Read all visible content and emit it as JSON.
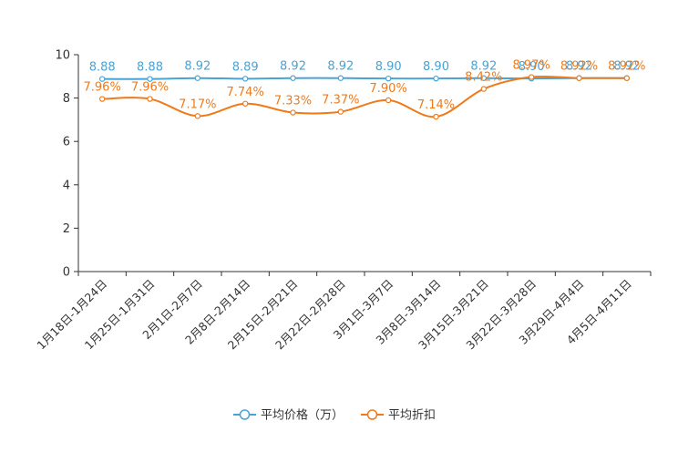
{
  "chart_data": {
    "type": "line",
    "title": "",
    "xlabel": "",
    "ylabel": "",
    "ylim": [
      0,
      10
    ],
    "yticks": [
      0,
      2,
      4,
      6,
      8,
      10
    ],
    "grid": false,
    "legend_position": "bottom-center",
    "categories": [
      "1月18日-1月24日",
      "1月25日-1月31日",
      "2月1日-2月7日",
      "2月8日-2月14日",
      "2月15日-2月21日",
      "2月22日-2月28日",
      "3月1日-3月7日",
      "3月8日-3月14日",
      "3月15日-3月21日",
      "3月22日-3月28日",
      "3月29日-4月4日",
      "4月5日-4月11日"
    ],
    "series": [
      {
        "name": "平均价格（万）",
        "color": "#4aa3d4",
        "values": [
          8.88,
          8.88,
          8.92,
          8.89,
          8.92,
          8.92,
          8.9,
          8.9,
          8.92,
          8.9,
          8.92,
          8.92
        ],
        "labels": [
          "8.88",
          "8.88",
          "8.92",
          "8.89",
          "8.92",
          "8.92",
          "8.90",
          "8.90",
          "8.92",
          "8.90",
          "8.92",
          "8.92"
        ]
      },
      {
        "name": "平均折扣",
        "color": "#f07a1a",
        "values": [
          7.96,
          7.96,
          7.17,
          7.74,
          7.33,
          7.37,
          7.9,
          7.14,
          8.42,
          8.97,
          8.92,
          8.92
        ],
        "labels": [
          "7.96%",
          "7.96%",
          "7.17%",
          "7.74%",
          "7.33%",
          "7.37%",
          "7.90%",
          "7.14%",
          "8.42%",
          "8.97%",
          "8.92%",
          "8.92%"
        ]
      }
    ]
  }
}
